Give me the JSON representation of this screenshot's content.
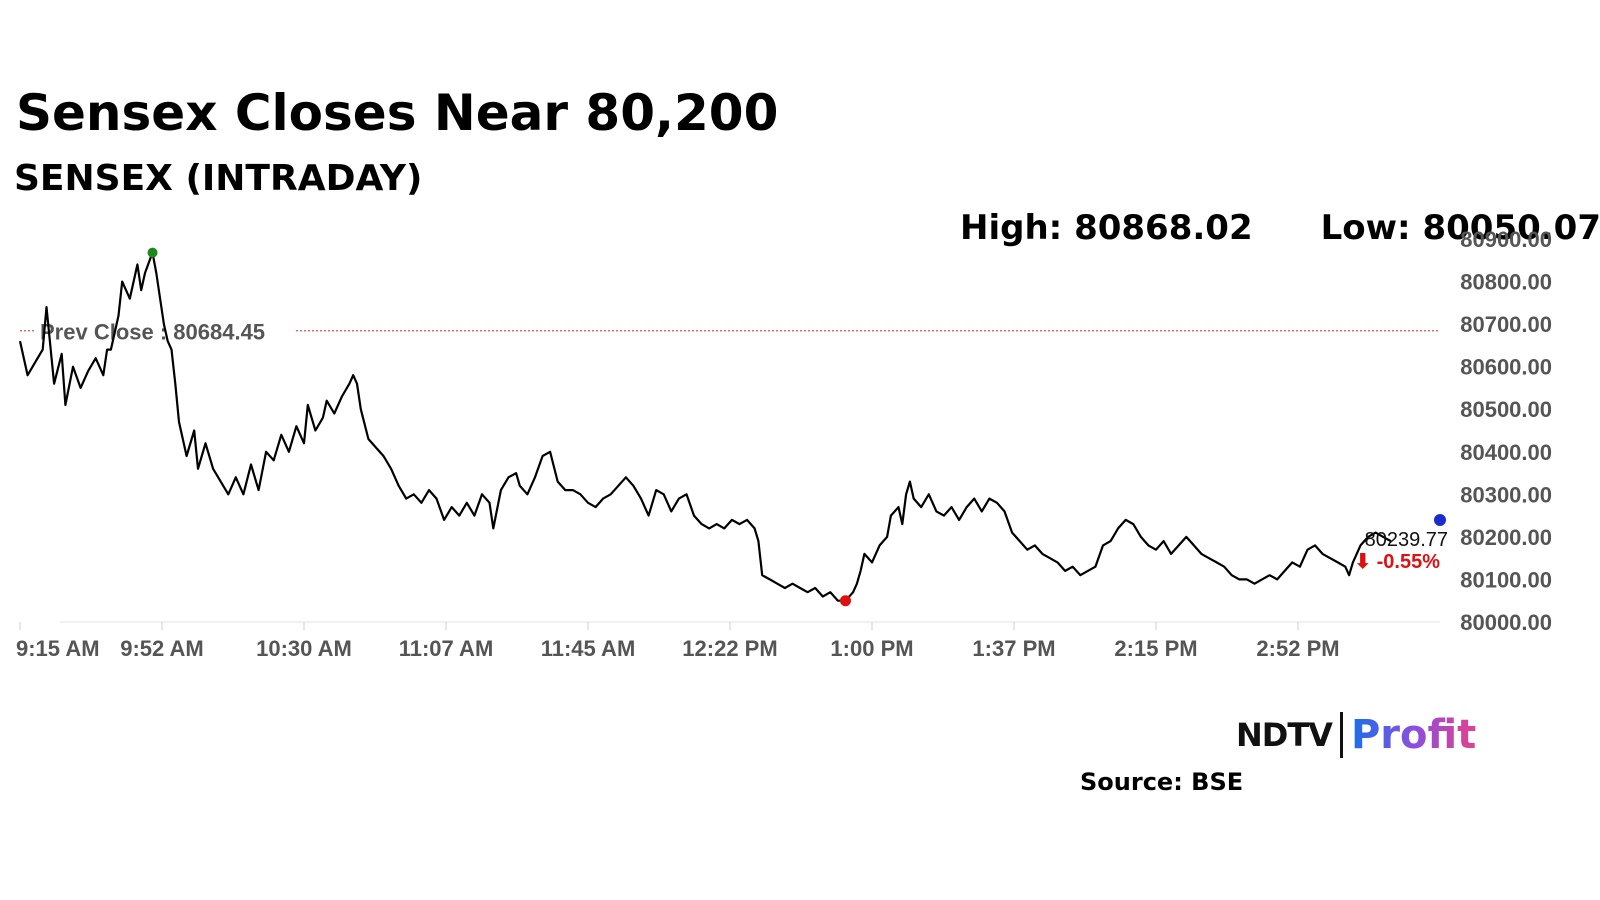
{
  "header": {
    "headline": "Sensex Closes Near 80,200",
    "subtitle": "SENSEX (INTRADAY)",
    "high_label": "High: 80868.02",
    "low_label": "Low: 80050.07"
  },
  "footer": {
    "brand_ndtv": "NDTV",
    "brand_profit": "Profit",
    "source": "Source: BSE"
  },
  "colors": {
    "line": "#000000",
    "prev_close_line": "#d9534f",
    "high_marker": "#1a8a1a",
    "low_marker": "#e01010",
    "last_marker": "#1a2ccc",
    "change_negative": "#e01010"
  },
  "chart_data": {
    "type": "line",
    "title": "SENSEX (INTRADAY)",
    "ylim": [
      80000,
      80900
    ],
    "yticks": [
      "80000.00",
      "80100.00",
      "80200.00",
      "80300.00",
      "80400.00",
      "80500.00",
      "80600.00",
      "80700.00",
      "80800.00",
      "80900.00"
    ],
    "xticks": [
      "9:15 AM",
      "9:52 AM",
      "10:30 AM",
      "11:07 AM",
      "11:45 AM",
      "12:22 PM",
      "1:00 PM",
      "1:37 PM",
      "2:15 PM",
      "2:52 PM"
    ],
    "x_unit": "minutes since 9:15 AM",
    "prev_close": 80684.45,
    "prev_close_label": "Prev Close : 80684.45",
    "high": 80868.02,
    "high_time_min": 35,
    "low": 80050.07,
    "low_time_min": 218,
    "last_value": 80239.77,
    "last_value_label": "80239.77",
    "change_label": "⬇ -0.55%",
    "series": [
      {
        "points": [
          [
            0,
            80660
          ],
          [
            2,
            80580
          ],
          [
            4,
            80610
          ],
          [
            6,
            80640
          ],
          [
            7,
            80740
          ],
          [
            9,
            80560
          ],
          [
            11,
            80630
          ],
          [
            12,
            80510
          ],
          [
            14,
            80600
          ],
          [
            16,
            80550
          ],
          [
            18,
            80590
          ],
          [
            20,
            80620
          ],
          [
            22,
            80580
          ],
          [
            23,
            80640
          ],
          [
            24,
            80640
          ],
          [
            25,
            80680
          ],
          [
            26,
            80720
          ],
          [
            27,
            80800
          ],
          [
            29,
            80760
          ],
          [
            31,
            80840
          ],
          [
            32,
            80780
          ],
          [
            33,
            80820
          ],
          [
            35,
            80868
          ],
          [
            36,
            80820
          ],
          [
            37,
            80760
          ],
          [
            38,
            80700
          ],
          [
            39,
            80660
          ],
          [
            40,
            80640
          ],
          [
            41,
            80560
          ],
          [
            42,
            80470
          ],
          [
            43,
            80430
          ],
          [
            44,
            80390
          ],
          [
            46,
            80450
          ],
          [
            47,
            80360
          ],
          [
            49,
            80420
          ],
          [
            51,
            80360
          ],
          [
            53,
            80330
          ],
          [
            55,
            80300
          ],
          [
            57,
            80340
          ],
          [
            59,
            80300
          ],
          [
            61,
            80370
          ],
          [
            63,
            80310
          ],
          [
            65,
            80400
          ],
          [
            67,
            80380
          ],
          [
            69,
            80440
          ],
          [
            71,
            80400
          ],
          [
            73,
            80460
          ],
          [
            75,
            80420
          ],
          [
            76,
            80510
          ],
          [
            78,
            80450
          ],
          [
            80,
            80480
          ],
          [
            81,
            80520
          ],
          [
            83,
            80490
          ],
          [
            85,
            80530
          ],
          [
            87,
            80560
          ],
          [
            88,
            80580
          ],
          [
            89,
            80560
          ],
          [
            90,
            80500
          ],
          [
            92,
            80430
          ],
          [
            94,
            80410
          ],
          [
            96,
            80390
          ],
          [
            98,
            80360
          ],
          [
            100,
            80320
          ],
          [
            102,
            80290
          ],
          [
            104,
            80300
          ],
          [
            106,
            80280
          ],
          [
            108,
            80310
          ],
          [
            110,
            80290
          ],
          [
            112,
            80240
          ],
          [
            114,
            80270
          ],
          [
            116,
            80250
          ],
          [
            118,
            80280
          ],
          [
            120,
            80250
          ],
          [
            122,
            80300
          ],
          [
            124,
            80280
          ],
          [
            125,
            80220
          ],
          [
            127,
            80310
          ],
          [
            129,
            80340
          ],
          [
            131,
            80350
          ],
          [
            132,
            80320
          ],
          [
            134,
            80300
          ],
          [
            136,
            80340
          ],
          [
            138,
            80390
          ],
          [
            140,
            80400
          ],
          [
            142,
            80330
          ],
          [
            144,
            80310
          ],
          [
            146,
            80310
          ],
          [
            148,
            80300
          ],
          [
            150,
            80280
          ],
          [
            152,
            80270
          ],
          [
            154,
            80290
          ],
          [
            156,
            80300
          ],
          [
            158,
            80320
          ],
          [
            160,
            80340
          ],
          [
            162,
            80320
          ],
          [
            164,
            80290
          ],
          [
            166,
            80250
          ],
          [
            168,
            80310
          ],
          [
            170,
            80300
          ],
          [
            172,
            80260
          ],
          [
            174,
            80290
          ],
          [
            176,
            80300
          ],
          [
            178,
            80250
          ],
          [
            180,
            80230
          ],
          [
            182,
            80220
          ],
          [
            184,
            80230
          ],
          [
            186,
            80220
          ],
          [
            188,
            80240
          ],
          [
            190,
            80230
          ],
          [
            192,
            80240
          ],
          [
            194,
            80220
          ],
          [
            195,
            80190
          ],
          [
            196,
            80110
          ],
          [
            198,
            80100
          ],
          [
            200,
            80090
          ],
          [
            202,
            80080
          ],
          [
            204,
            80090
          ],
          [
            206,
            80080
          ],
          [
            208,
            80070
          ],
          [
            210,
            80080
          ],
          [
            212,
            80060
          ],
          [
            214,
            80070
          ],
          [
            216,
            80050
          ],
          [
            218,
            80050
          ],
          [
            220,
            80070
          ],
          [
            221,
            80090
          ],
          [
            222,
            80120
          ],
          [
            223,
            80160
          ],
          [
            225,
            80140
          ],
          [
            227,
            80180
          ],
          [
            229,
            80200
          ],
          [
            230,
            80250
          ],
          [
            232,
            80270
          ],
          [
            233,
            80230
          ],
          [
            234,
            80300
          ],
          [
            235,
            80330
          ],
          [
            236,
            80290
          ],
          [
            238,
            80270
          ],
          [
            240,
            80300
          ],
          [
            242,
            80260
          ],
          [
            244,
            80250
          ],
          [
            246,
            80270
          ],
          [
            248,
            80240
          ],
          [
            250,
            80270
          ],
          [
            252,
            80290
          ],
          [
            254,
            80260
          ],
          [
            256,
            80290
          ],
          [
            258,
            80280
          ],
          [
            260,
            80260
          ],
          [
            262,
            80210
          ],
          [
            264,
            80190
          ],
          [
            266,
            80170
          ],
          [
            268,
            80180
          ],
          [
            270,
            80160
          ],
          [
            272,
            80150
          ],
          [
            274,
            80140
          ],
          [
            276,
            80120
          ],
          [
            278,
            80130
          ],
          [
            280,
            80110
          ],
          [
            282,
            80120
          ],
          [
            284,
            80130
          ],
          [
            286,
            80180
          ],
          [
            288,
            80190
          ],
          [
            290,
            80220
          ],
          [
            292,
            80240
          ],
          [
            294,
            80230
          ],
          [
            296,
            80200
          ],
          [
            298,
            80180
          ],
          [
            300,
            80170
          ],
          [
            302,
            80190
          ],
          [
            304,
            80160
          ],
          [
            306,
            80180
          ],
          [
            308,
            80200
          ],
          [
            310,
            80180
          ],
          [
            312,
            80160
          ],
          [
            314,
            80150
          ],
          [
            316,
            80140
          ],
          [
            318,
            80130
          ],
          [
            320,
            80110
          ],
          [
            322,
            80100
          ],
          [
            324,
            80100
          ],
          [
            326,
            80090
          ],
          [
            328,
            80100
          ],
          [
            330,
            80110
          ],
          [
            332,
            80100
          ],
          [
            334,
            80120
          ],
          [
            336,
            80140
          ],
          [
            338,
            80130
          ],
          [
            340,
            80170
          ],
          [
            342,
            80180
          ],
          [
            344,
            80160
          ],
          [
            346,
            80150
          ],
          [
            348,
            80140
          ],
          [
            350,
            80130
          ],
          [
            351,
            80110
          ],
          [
            352,
            80140
          ],
          [
            354,
            80180
          ],
          [
            356,
            80200
          ],
          [
            358,
            80210
          ],
          [
            360,
            80200
          ],
          [
            362,
            80190
          ]
        ]
      }
    ]
  }
}
